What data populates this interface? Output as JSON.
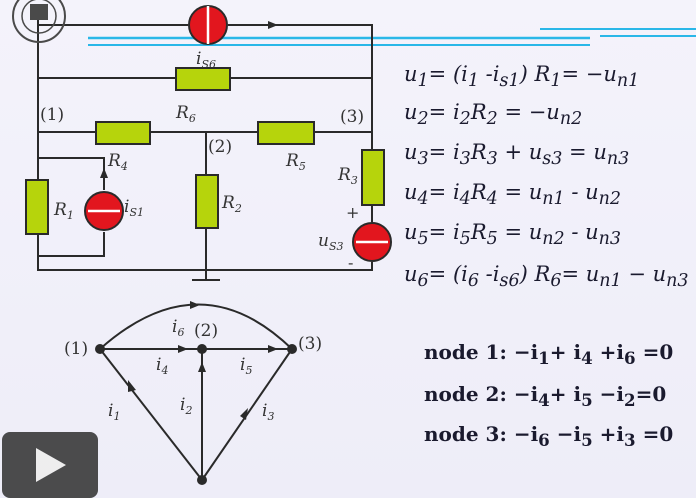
{
  "circuit": {
    "node1": "(1)",
    "node2": "(2)",
    "node3": "(3)",
    "R1": "R",
    "R1_sub": "1",
    "R3": "R",
    "R3_sub": "3",
    "R4": "R",
    "R4_sub": "4",
    "R5": "R",
    "R5_sub": "5",
    "R6": "R",
    "R6_sub": "6",
    "R2": "R",
    "R2_sub": "2",
    "is1": "i",
    "is1_sub": "S1",
    "is6": "i",
    "is6_sub": "S6",
    "us3": "u",
    "us3_sub": "S3",
    "plus": "+",
    "minus": "-"
  },
  "equations": [
    {
      "id": "u1",
      "html": "u<sub>1</sub>= (i<sub>1</sub> -i<sub>s1</sub>) R<sub>1</sub>= −u<sub>n1</sub>"
    },
    {
      "id": "u2",
      "html": "u<sub>2</sub>= i<sub>2</sub>R<sub>2</sub> = −u<sub>n2</sub>"
    },
    {
      "id": "u3",
      "html": "u<sub>3</sub>= i<sub>3</sub>R<sub>3</sub> + u<sub>s3</sub> = u<sub>n3</sub>"
    },
    {
      "id": "u4",
      "html": "u<sub>4</sub>= i<sub>4</sub>R<sub>4</sub> = u<sub>n1</sub> - u<sub>n2</sub>"
    },
    {
      "id": "u5",
      "html": "u<sub>5</sub>= i<sub>5</sub>R<sub>5</sub> = u<sub>n2</sub> - u<sub>n3</sub>"
    },
    {
      "id": "u6",
      "html": "u<sub>6</sub>= (i<sub>6</sub> -i<sub>s6</sub>) R<sub>6</sub>= u<sub>n1</sub> − u<sub>n3</sub>"
    }
  ],
  "graph": {
    "n1": "(1)",
    "n2": "(2)",
    "n3": "(3)",
    "i1": "i",
    "i1_sub": "1",
    "i2": "i",
    "i2_sub": "2",
    "i3": "i",
    "i3_sub": "3",
    "i4": "i",
    "i4_sub": "4",
    "i5": "i",
    "i5_sub": "5",
    "i6": "i",
    "i6_sub": "6"
  },
  "kcl": [
    {
      "id": "node1",
      "html": "node 1:  −i<sub>1</sub>+ i<sub>4</sub> +i<sub>6</sub> =0"
    },
    {
      "id": "node2",
      "html": "node 2: −i<sub>4</sub>+ i<sub>5</sub> −i<sub>2</sub>=0"
    },
    {
      "id": "node3",
      "html": "node 3: −i<sub>6</sub> −i<sub>5</sub> +i<sub>3</sub> =0"
    }
  ],
  "colors": {
    "resistor": "#b6d40c",
    "source": "#e2161e",
    "wire": "#2a2a2a",
    "projector": "#2ab7e8"
  },
  "play_icon": "play-icon"
}
